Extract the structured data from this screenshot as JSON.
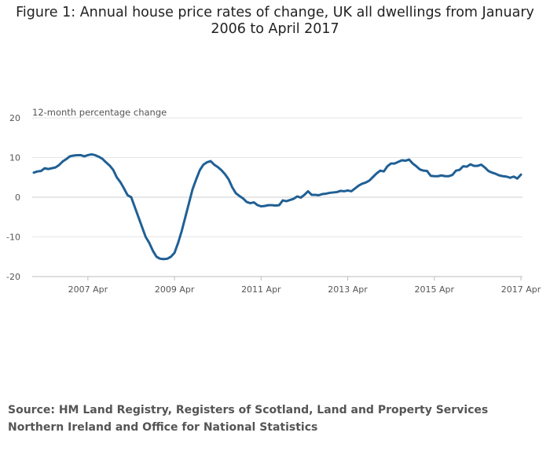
{
  "title": "Figure 1: Annual house price rates of change, UK all dwellings from January 2006 to April 2017",
  "source": "Source: HM Land Registry, Registers of Scotland, Land and Property Services Northern Ireland and Office for National Statistics",
  "chart_data": {
    "type": "line",
    "title": "Figure 1: Annual house price rates of change, UK all dwellings from January 2006 to April 2017",
    "xlabel": "",
    "ylabel": "12-month percentage change",
    "ylim": [
      -20,
      20
    ],
    "y_ticks": [
      20,
      10,
      0,
      -10,
      -20
    ],
    "x_ticks": [
      "2007 Apr",
      "2009 Apr",
      "2011 Apr",
      "2013 Apr",
      "2015 Apr",
      "2017 Apr"
    ],
    "x_start": "2006 Jan",
    "x_end": "2017 Apr",
    "grid": true,
    "legend": "none",
    "line_color": "#206095",
    "series": [
      {
        "values": [
          6.2,
          6.5,
          6.6,
          7.3,
          7.1,
          7.3,
          7.5,
          8.1,
          9.0,
          9.6,
          10.3,
          10.5,
          10.6,
          10.6,
          10.3,
          10.6,
          10.8,
          10.6,
          10.2,
          9.7,
          8.8,
          8.0,
          6.9,
          5.0,
          3.8,
          2.2,
          0.5,
          0.0,
          -2.5,
          -5.0,
          -7.5,
          -10.0,
          -11.5,
          -13.5,
          -15.0,
          -15.5,
          -15.6,
          -15.5,
          -15.0,
          -14.0,
          -11.5,
          -8.5,
          -5.0,
          -1.5,
          2.0,
          4.5,
          6.8,
          8.2,
          8.8,
          9.1,
          8.2,
          7.6,
          6.8,
          5.8,
          4.5,
          2.5,
          1.0,
          0.3,
          -0.3,
          -1.2,
          -1.5,
          -1.3,
          -2.0,
          -2.3,
          -2.2,
          -2.0,
          -2.0,
          -2.1,
          -2.0,
          -0.8,
          -1.0,
          -0.7,
          -0.4,
          0.2,
          -0.1,
          0.6,
          1.5,
          0.6,
          0.6,
          0.5,
          0.8,
          0.9,
          1.1,
          1.2,
          1.3,
          1.6,
          1.5,
          1.7,
          1.5,
          2.2,
          2.9,
          3.4,
          3.7,
          4.2,
          5.1,
          6.0,
          6.7,
          6.5,
          7.8,
          8.5,
          8.5,
          8.9,
          9.3,
          9.2,
          9.5,
          8.5,
          7.8,
          7.0,
          6.7,
          6.6,
          5.4,
          5.3,
          5.3,
          5.5,
          5.3,
          5.3,
          5.6,
          6.7,
          6.9,
          7.8,
          7.7,
          8.3,
          7.9,
          7.9,
          8.2,
          7.5,
          6.6,
          6.2,
          5.9,
          5.5,
          5.3,
          5.2,
          4.9,
          5.2,
          4.7,
          5.7
        ]
      }
    ]
  }
}
